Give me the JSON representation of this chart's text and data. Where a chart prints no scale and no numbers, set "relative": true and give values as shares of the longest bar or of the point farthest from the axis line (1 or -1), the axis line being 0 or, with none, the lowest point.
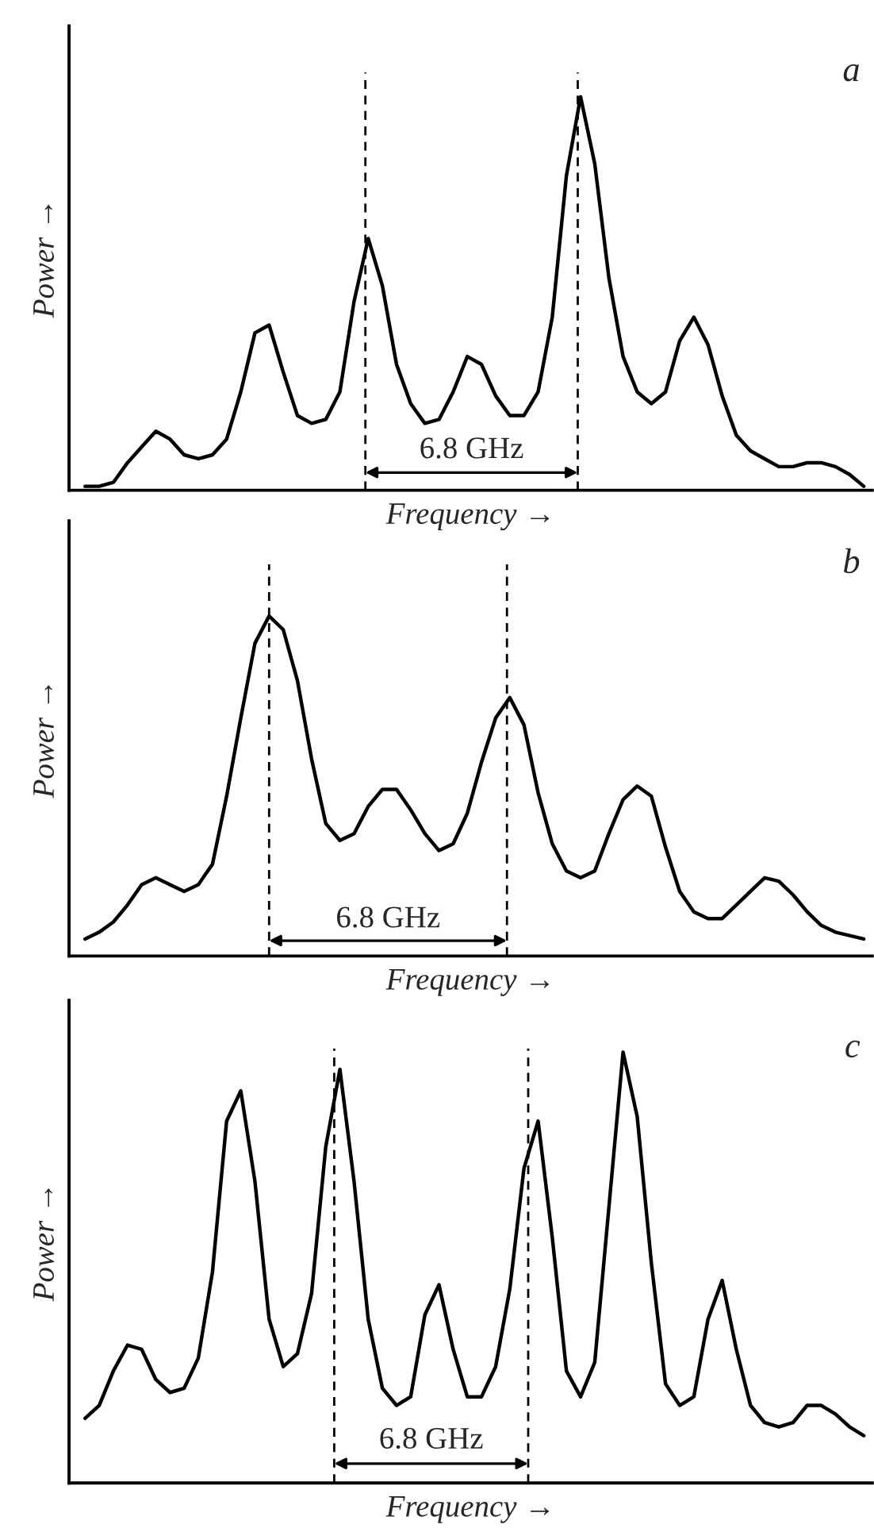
{
  "chart_data": [
    {
      "type": "line",
      "title": "a",
      "xlabel": "Frequency →",
      "ylabel": "Power →",
      "relative": true,
      "categories": [
        null,
        null,
        null,
        null,
        null,
        null,
        null,
        null,
        null,
        null,
        null,
        null,
        null,
        null,
        null,
        null,
        null,
        null,
        null,
        null,
        null,
        null,
        null,
        null,
        null,
        null,
        null,
        null,
        null,
        null,
        null,
        null,
        null,
        null,
        null,
        null,
        null,
        null,
        null,
        null,
        null,
        null,
        null,
        null,
        null,
        null,
        null,
        null,
        null,
        null,
        null,
        null,
        null,
        null,
        null,
        null
      ],
      "series": [
        {
          "color": "#000000",
          "values": [
            0.01,
            0.01,
            0.02,
            0.07,
            0.11,
            0.15,
            0.13,
            0.09,
            0.08,
            0.09,
            0.13,
            0.25,
            0.4,
            0.42,
            0.3,
            0.19,
            0.17,
            0.18,
            0.25,
            0.48,
            0.64,
            0.52,
            0.32,
            0.22,
            0.17,
            0.18,
            0.25,
            0.34,
            0.32,
            0.24,
            0.19,
            0.19,
            0.25,
            0.44,
            0.8,
            1.0,
            0.83,
            0.54,
            0.34,
            0.25,
            0.22,
            0.25,
            0.38,
            0.44,
            0.37,
            0.24,
            0.14,
            0.1,
            0.08,
            0.06,
            0.06,
            0.07,
            0.07,
            0.06,
            0.04,
            0.01
          ]
        }
      ],
      "annotations": [
        "6.8 GHz"
      ]
    },
    {
      "type": "line",
      "title": "b",
      "xlabel": "Frequency →",
      "ylabel": "Power →",
      "relative": true,
      "categories": [
        null,
        null,
        null,
        null,
        null,
        null,
        null,
        null,
        null,
        null,
        null,
        null,
        null,
        null,
        null,
        null,
        null,
        null,
        null,
        null,
        null,
        null,
        null,
        null,
        null,
        null,
        null,
        null,
        null,
        null,
        null,
        null,
        null,
        null,
        null,
        null,
        null,
        null,
        null,
        null,
        null,
        null,
        null,
        null,
        null,
        null,
        null,
        null,
        null,
        null,
        null,
        null,
        null,
        null,
        null,
        null
      ],
      "series": [
        {
          "color": "#000000",
          "values": [
            0.05,
            0.07,
            0.1,
            0.15,
            0.21,
            0.23,
            0.21,
            0.19,
            0.21,
            0.27,
            0.47,
            0.7,
            0.92,
            1.0,
            0.96,
            0.81,
            0.58,
            0.39,
            0.34,
            0.36,
            0.44,
            0.49,
            0.49,
            0.43,
            0.36,
            0.31,
            0.33,
            0.42,
            0.57,
            0.7,
            0.76,
            0.68,
            0.48,
            0.33,
            0.25,
            0.23,
            0.25,
            0.36,
            0.46,
            0.5,
            0.47,
            0.32,
            0.19,
            0.13,
            0.11,
            0.11,
            0.15,
            0.19,
            0.23,
            0.22,
            0.18,
            0.13,
            0.09,
            0.07,
            0.06,
            0.05
          ]
        }
      ],
      "annotations": [
        "6.8 GHz"
      ]
    },
    {
      "type": "line",
      "title": "c",
      "xlabel": "Frequency →",
      "ylabel": "Power →",
      "relative": true,
      "categories": [
        null,
        null,
        null,
        null,
        null,
        null,
        null,
        null,
        null,
        null,
        null,
        null,
        null,
        null,
        null,
        null,
        null,
        null,
        null,
        null,
        null,
        null,
        null,
        null,
        null,
        null,
        null,
        null,
        null,
        null,
        null,
        null,
        null,
        null,
        null,
        null,
        null,
        null,
        null,
        null,
        null,
        null,
        null,
        null,
        null,
        null,
        null,
        null,
        null,
        null,
        null,
        null,
        null,
        null,
        null,
        null
      ],
      "series": [
        {
          "color": "#000000",
          "values": [
            0.15,
            0.18,
            0.26,
            0.32,
            0.31,
            0.24,
            0.21,
            0.22,
            0.29,
            0.49,
            0.84,
            0.91,
            0.7,
            0.38,
            0.27,
            0.3,
            0.44,
            0.78,
            0.96,
            0.7,
            0.38,
            0.22,
            0.18,
            0.2,
            0.39,
            0.46,
            0.31,
            0.2,
            0.2,
            0.27,
            0.45,
            0.73,
            0.84,
            0.57,
            0.26,
            0.2,
            0.28,
            0.64,
            1.0,
            0.85,
            0.51,
            0.23,
            0.18,
            0.2,
            0.38,
            0.47,
            0.31,
            0.18,
            0.14,
            0.13,
            0.14,
            0.18,
            0.18,
            0.16,
            0.13,
            0.11
          ]
        }
      ],
      "annotations": [
        "6.8 GHz"
      ]
    }
  ]
}
